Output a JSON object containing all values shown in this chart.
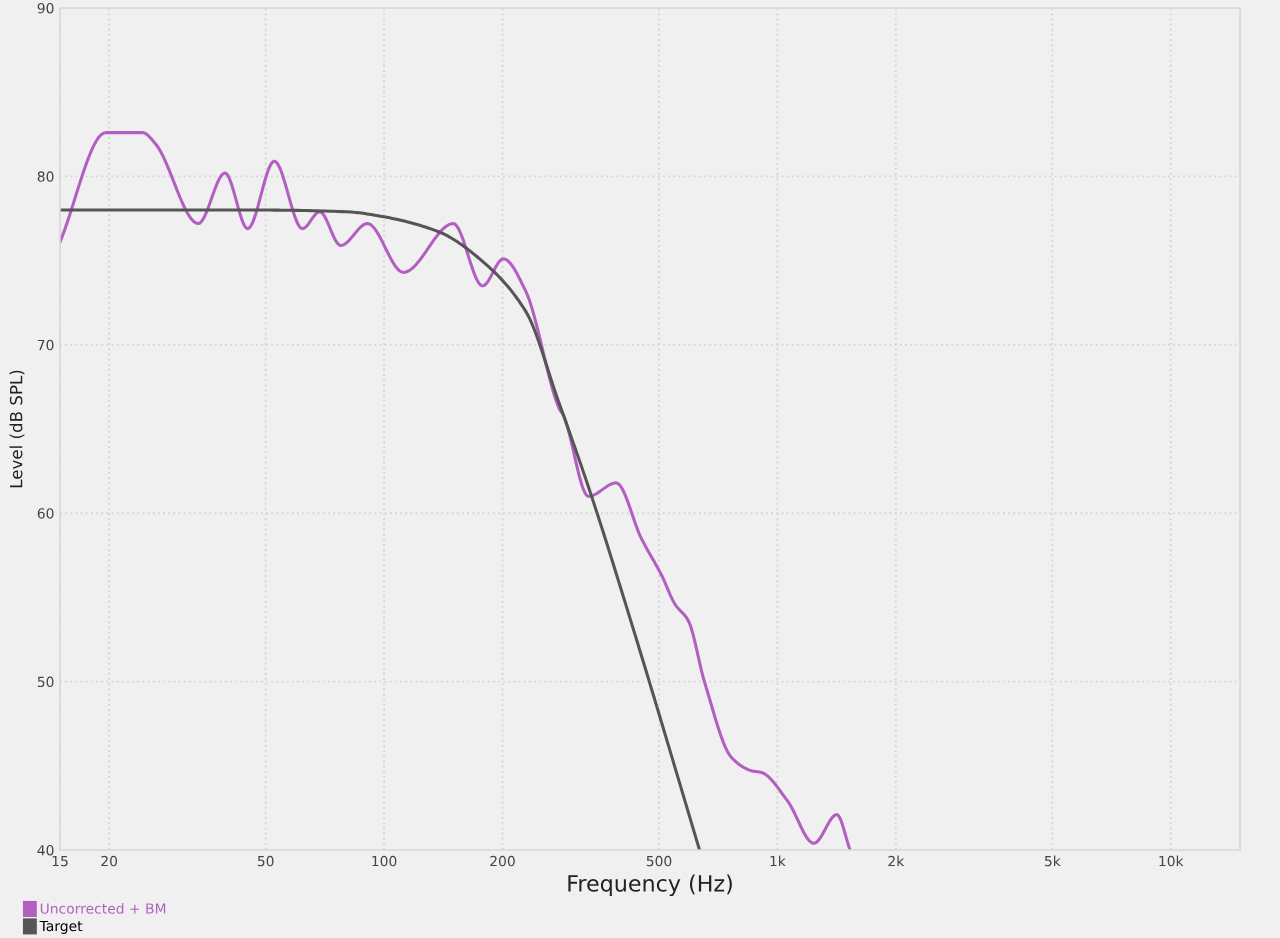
{
  "chart_data": {
    "type": "line",
    "xlabel": "Frequency (Hz)",
    "ylabel": "Level (dB SPL)",
    "log": "x",
    "xlim": [
      15,
      15000
    ],
    "ylim": [
      40,
      90
    ],
    "xticks": [
      15,
      20,
      50,
      100,
      200,
      500,
      {
        "value": 1000,
        "label": "1k"
      },
      {
        "value": 2000,
        "label": "2k"
      },
      {
        "value": 5000,
        "label": "5k"
      },
      {
        "value": 10000,
        "label": "10k"
      }
    ],
    "yticks": [
      40,
      50,
      60,
      70,
      80,
      90
    ],
    "grid": true,
    "legend": "bottom left",
    "marker": "none",
    "line_style": "solid",
    "series": [
      {
        "name": "Uncorrected + BM",
        "color": "#b35fc2",
        "x": [
          15,
          19.6,
          24.3,
          26.3,
          33.7,
          39.4,
          45,
          52.6,
          62,
          68.6,
          77.6,
          90.7,
          112,
          150,
          178,
          201,
          229,
          279,
          286,
          331,
          389,
          451,
          508,
          549,
          594,
          654,
          764,
          861,
          912,
          1062,
          1238,
          1416,
          1530
        ],
        "values": [
          76.1,
          82.6,
          82.6,
          81.9,
          77.2,
          80.2,
          76.9,
          80.9,
          76.9,
          77.9,
          75.9,
          77.2,
          74.3,
          77.2,
          73.5,
          75.1,
          73.2,
          66.2,
          65.8,
          61.0,
          61.8,
          58.5,
          56.3,
          54.6,
          53.6,
          49.9,
          45.5,
          44.7,
          44.6,
          42.9,
          40.4,
          42.1,
          40.0
        ]
      },
      {
        "name": "Target",
        "color": "#555555",
        "x": [
          15,
          50,
          80,
          100,
          138,
          175,
          229,
          278,
          286,
          337,
          437,
          634
        ],
        "values": [
          78.0,
          78.0,
          77.9,
          77.6,
          76.7,
          75.1,
          72.0,
          66.6,
          65.8,
          61.0,
          52.6,
          40.0
        ]
      }
    ]
  }
}
